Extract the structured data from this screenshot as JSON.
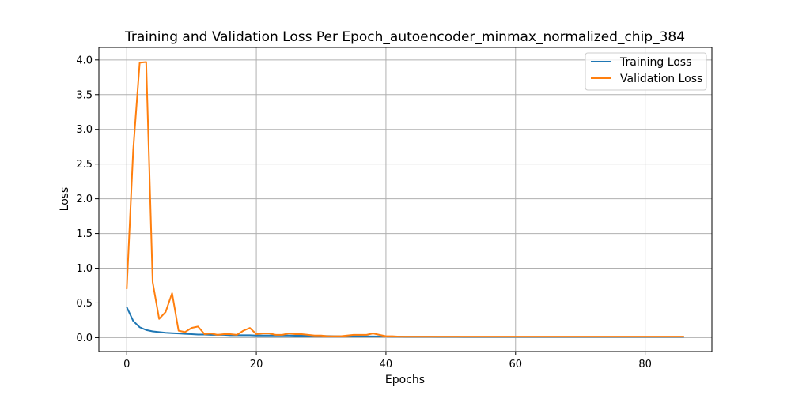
{
  "chart_data": {
    "type": "line",
    "title": "Training and Validation Loss Per Epoch_autoencoder_minmax_normalized_chip_384",
    "xlabel": "Epochs",
    "ylabel": "Loss",
    "xlim": [
      -4.3,
      90.3
    ],
    "ylim": [
      -0.2,
      4.18
    ],
    "xticks": [
      0,
      20,
      40,
      60,
      80
    ],
    "xtick_labels": [
      "0",
      "20",
      "40",
      "60",
      "80"
    ],
    "yticks": [
      0,
      0.5,
      1.0,
      1.5,
      2.0,
      2.5,
      3.0,
      3.5,
      4.0
    ],
    "ytick_labels": [
      "0.0",
      "0.5",
      "1.0",
      "1.5",
      "2.0",
      "2.5",
      "3.0",
      "3.5",
      "4.0"
    ],
    "grid": true,
    "legend_position": "top-right",
    "x": [
      0,
      1,
      2,
      3,
      4,
      5,
      6,
      7,
      8,
      9,
      10,
      11,
      12,
      13,
      14,
      15,
      16,
      17,
      18,
      19,
      20,
      21,
      22,
      23,
      24,
      25,
      26,
      27,
      28,
      29,
      30,
      31,
      32,
      33,
      34,
      35,
      36,
      37,
      38,
      39,
      40,
      41,
      42,
      43,
      44,
      45,
      46,
      47,
      48,
      49,
      50,
      51,
      52,
      53,
      54,
      55,
      56,
      57,
      58,
      59,
      60,
      61,
      62,
      63,
      64,
      65,
      66,
      67,
      68,
      69,
      70,
      71,
      72,
      73,
      74,
      75,
      76,
      77,
      78,
      79,
      80,
      81,
      82,
      83,
      84,
      85,
      86
    ],
    "series": [
      {
        "name": "Training Loss",
        "color": "#1f77b4",
        "values": [
          0.44,
          0.24,
          0.15,
          0.11,
          0.09,
          0.08,
          0.07,
          0.065,
          0.06,
          0.055,
          0.05,
          0.045,
          0.045,
          0.04,
          0.04,
          0.04,
          0.035,
          0.035,
          0.035,
          0.035,
          0.03,
          0.03,
          0.03,
          0.03,
          0.03,
          0.03,
          0.028,
          0.027,
          0.026,
          0.025,
          0.024,
          0.023,
          0.022,
          0.021,
          0.02,
          0.02,
          0.02,
          0.019,
          0.018,
          0.017,
          0.016,
          0.015,
          0.015,
          0.014,
          0.014,
          0.013,
          0.013,
          0.013,
          0.012,
          0.012,
          0.012,
          0.012,
          0.011,
          0.011,
          0.011,
          0.011,
          0.011,
          0.01,
          0.01,
          0.01,
          0.01,
          0.01,
          0.01,
          0.01,
          0.01,
          0.01,
          0.01,
          0.01,
          0.01,
          0.01,
          0.01,
          0.01,
          0.01,
          0.01,
          0.01,
          0.01,
          0.01,
          0.01,
          0.01,
          0.01,
          0.01,
          0.01,
          0.01,
          0.01,
          0.01,
          0.01,
          0.01
        ]
      },
      {
        "name": "Validation Loss",
        "color": "#ff7f0e",
        "values": [
          0.7,
          2.7,
          3.96,
          3.97,
          0.8,
          0.27,
          0.37,
          0.64,
          0.1,
          0.08,
          0.14,
          0.16,
          0.05,
          0.06,
          0.04,
          0.05,
          0.05,
          0.04,
          0.1,
          0.14,
          0.05,
          0.06,
          0.06,
          0.04,
          0.04,
          0.06,
          0.05,
          0.05,
          0.04,
          0.03,
          0.03,
          0.02,
          0.02,
          0.02,
          0.03,
          0.04,
          0.04,
          0.04,
          0.06,
          0.04,
          0.02,
          0.02,
          0.015,
          0.015,
          0.015,
          0.015,
          0.015,
          0.015,
          0.015,
          0.015,
          0.015,
          0.015,
          0.015,
          0.015,
          0.015,
          0.015,
          0.015,
          0.015,
          0.015,
          0.015,
          0.015,
          0.015,
          0.015,
          0.015,
          0.015,
          0.015,
          0.015,
          0.015,
          0.015,
          0.015,
          0.015,
          0.015,
          0.015,
          0.015,
          0.015,
          0.015,
          0.015,
          0.015,
          0.015,
          0.015,
          0.015,
          0.015,
          0.015,
          0.015,
          0.015,
          0.015,
          0.015
        ]
      }
    ]
  }
}
